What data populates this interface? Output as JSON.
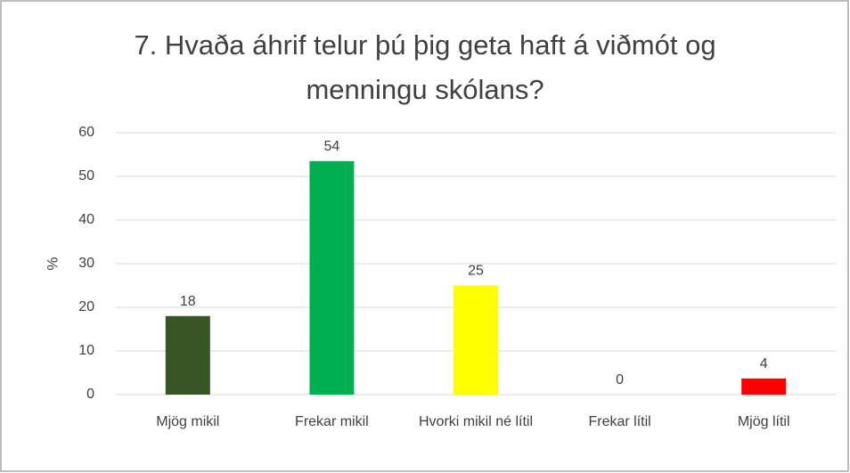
{
  "chart_data": {
    "type": "bar",
    "title": "7. Hvaða áhrif telur þú þig geta haft á viðmót og menningu skólans?",
    "y_label": "%",
    "categories": [
      "Mjög mikil",
      "Frekar mikil",
      "Hvorki mikil né lítil",
      "Frekar lítil",
      "Mjög lítil"
    ],
    "values": [
      18,
      53.5,
      25,
      0,
      3.7
    ],
    "value_labels": [
      "18",
      "54",
      "25",
      "0",
      "4"
    ],
    "colors": [
      "#375623",
      "#00b050",
      "#ffff00",
      null,
      "#ff0000"
    ],
    "ylim": [
      0,
      60
    ],
    "yticks": [
      0,
      10,
      20,
      30,
      40,
      50,
      60
    ],
    "grid": true
  }
}
